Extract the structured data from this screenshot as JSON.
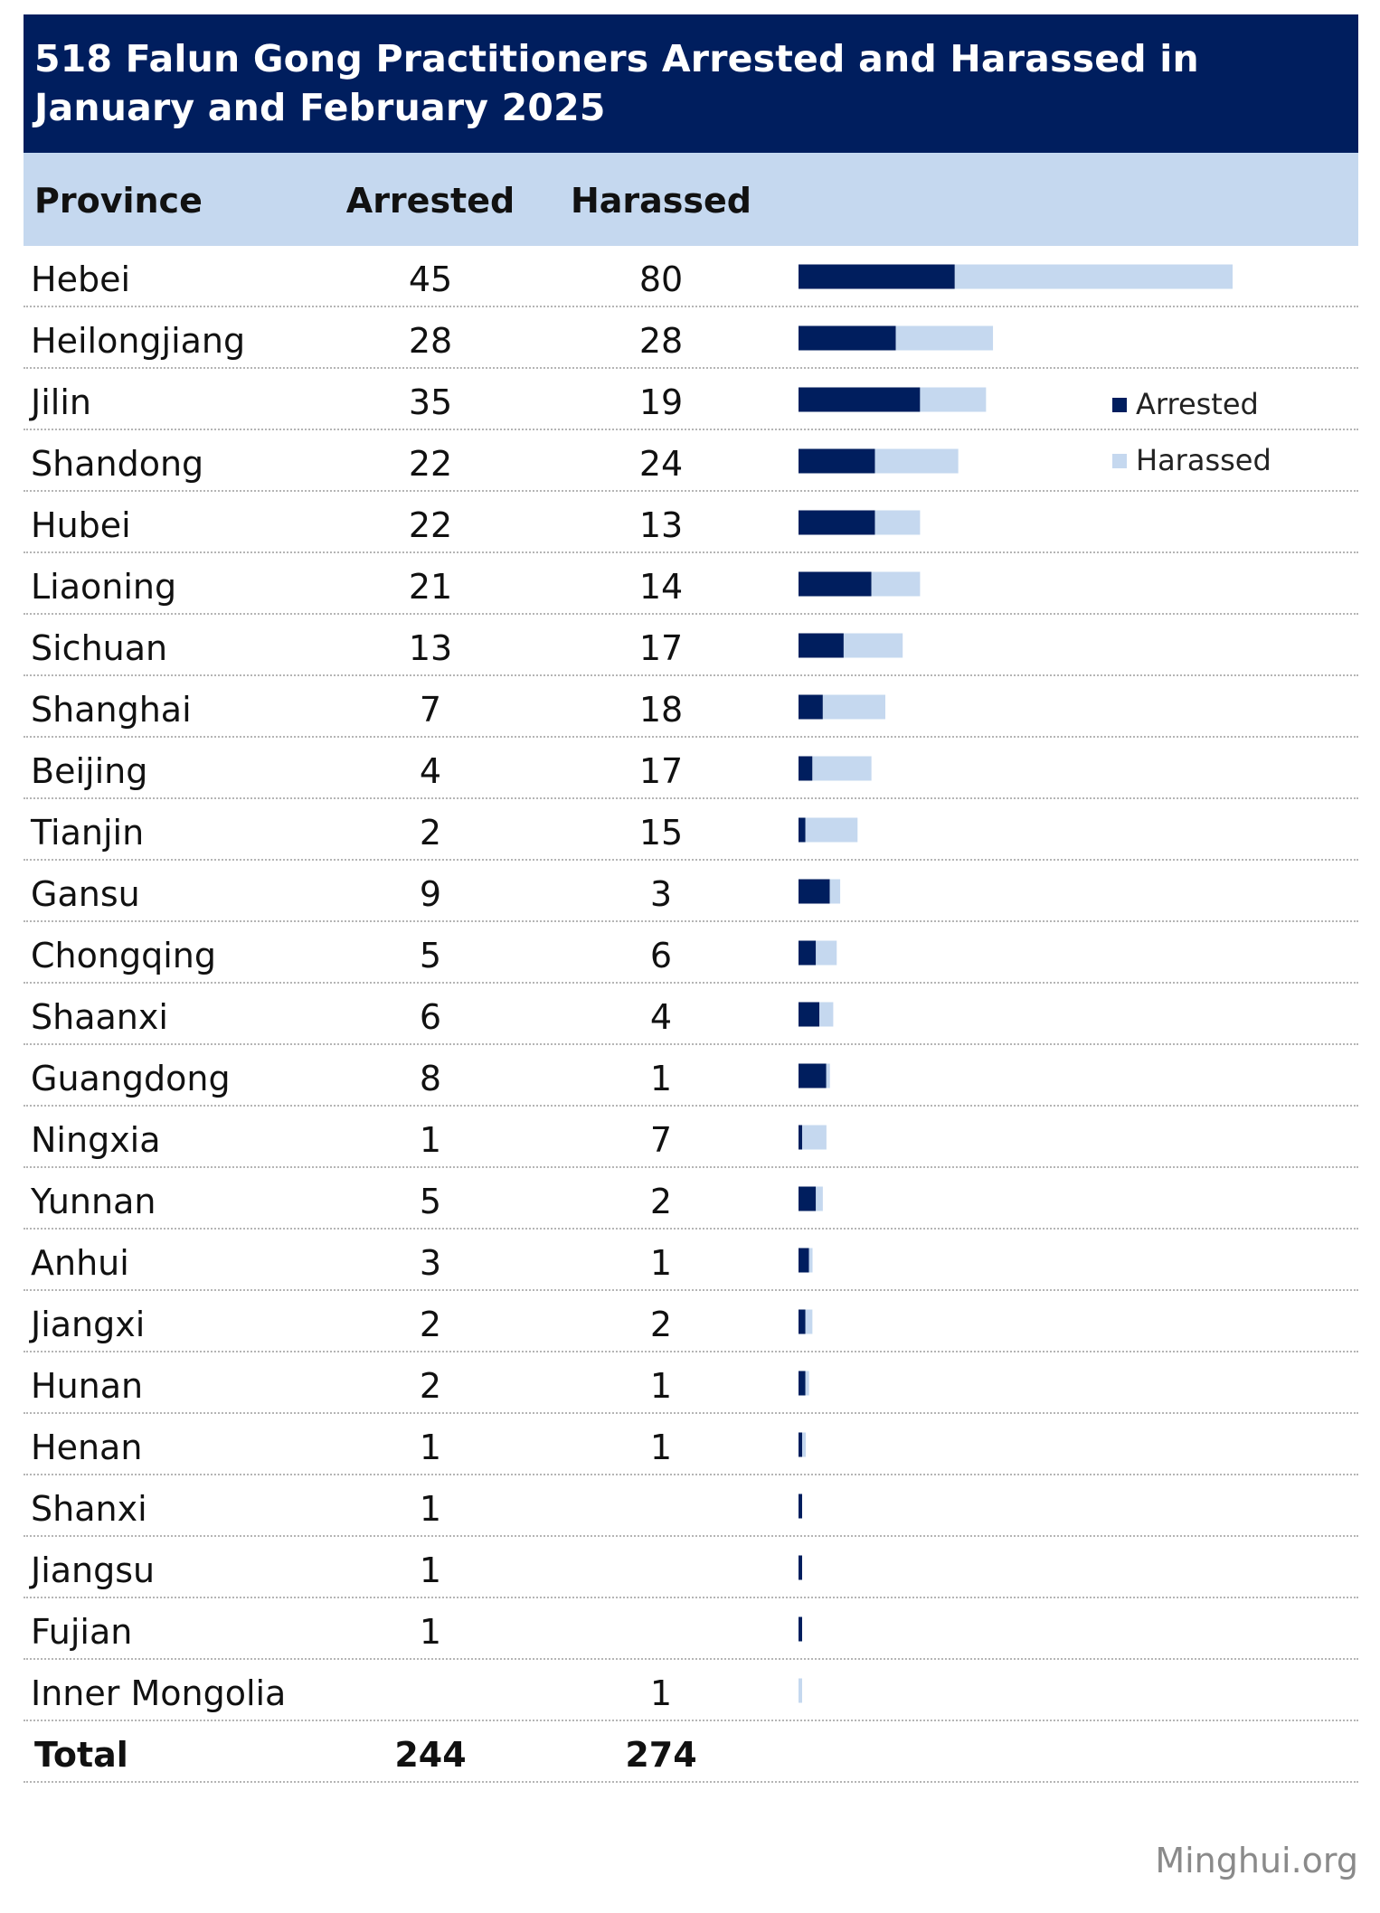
{
  "title": "518 Falun Gong Practitioners Arrested and Harassed in January and February 2025",
  "columns": {
    "province": "Province",
    "arrested": "Arrested",
    "harassed": "Harassed"
  },
  "legend": {
    "arrested": "Arrested",
    "harassed": "Harassed"
  },
  "colors": {
    "arrested": "#001e5e",
    "harassed": "#c5d8ef",
    "header_band": "#c5d8ef",
    "title_band": "#001e5e"
  },
  "source": "Minghui.org",
  "rows": [
    {
      "province": "Hebei",
      "arrested": "45",
      "harassed": "80"
    },
    {
      "province": "Heilongjiang",
      "arrested": "28",
      "harassed": "28"
    },
    {
      "province": "Jilin",
      "arrested": "35",
      "harassed": "19"
    },
    {
      "province": "Shandong",
      "arrested": "22",
      "harassed": "24"
    },
    {
      "province": "Hubei",
      "arrested": "22",
      "harassed": "13"
    },
    {
      "province": "Liaoning",
      "arrested": "21",
      "harassed": "14"
    },
    {
      "province": "Sichuan",
      "arrested": "13",
      "harassed": "17"
    },
    {
      "province": "Shanghai",
      "arrested": "7",
      "harassed": "18"
    },
    {
      "province": "Beijing",
      "arrested": "4",
      "harassed": "17"
    },
    {
      "province": "Tianjin",
      "arrested": "2",
      "harassed": "15"
    },
    {
      "province": "Gansu",
      "arrested": "9",
      "harassed": "3"
    },
    {
      "province": "Chongqing",
      "arrested": "5",
      "harassed": "6"
    },
    {
      "province": "Shaanxi",
      "arrested": "6",
      "harassed": "4"
    },
    {
      "province": "Guangdong",
      "arrested": "8",
      "harassed": "1"
    },
    {
      "province": "Ningxia",
      "arrested": "1",
      "harassed": "7"
    },
    {
      "province": "Yunnan",
      "arrested": "5",
      "harassed": "2"
    },
    {
      "province": "Anhui",
      "arrested": "3",
      "harassed": "1"
    },
    {
      "province": "Jiangxi",
      "arrested": "2",
      "harassed": "2"
    },
    {
      "province": "Hunan",
      "arrested": "2",
      "harassed": "1"
    },
    {
      "province": "Henan",
      "arrested": "1",
      "harassed": "1"
    },
    {
      "province": "Shanxi",
      "arrested": "1",
      "harassed": ""
    },
    {
      "province": "Jiangsu",
      "arrested": "1",
      "harassed": ""
    },
    {
      "province": "Fujian",
      "arrested": "1",
      "harassed": ""
    },
    {
      "province": "Inner Mongolia",
      "arrested": "",
      "harassed": "1"
    }
  ],
  "total": {
    "label": "Total",
    "arrested": "244",
    "harassed": "274"
  },
  "chart_data": {
    "type": "bar",
    "orientation": "horizontal",
    "stacked": true,
    "categories": [
      "Hebei",
      "Heilongjiang",
      "Jilin",
      "Shandong",
      "Hubei",
      "Liaoning",
      "Sichuan",
      "Shanghai",
      "Beijing",
      "Tianjin",
      "Gansu",
      "Chongqing",
      "Shaanxi",
      "Guangdong",
      "Ningxia",
      "Yunnan",
      "Anhui",
      "Jiangxi",
      "Hunan",
      "Henan",
      "Shanxi",
      "Jiangsu",
      "Fujian",
      "Inner Mongolia"
    ],
    "series": [
      {
        "name": "Arrested",
        "values": [
          45,
          28,
          35,
          22,
          22,
          21,
          13,
          7,
          4,
          2,
          9,
          5,
          6,
          8,
          1,
          5,
          3,
          2,
          2,
          1,
          1,
          1,
          1,
          0
        ]
      },
      {
        "name": "Harassed",
        "values": [
          80,
          28,
          19,
          24,
          13,
          14,
          17,
          18,
          17,
          15,
          3,
          6,
          4,
          1,
          7,
          2,
          1,
          2,
          1,
          1,
          0,
          0,
          0,
          1
        ]
      }
    ],
    "xlim": [
      0,
      125
    ],
    "legend_position": "right",
    "grid": false
  }
}
